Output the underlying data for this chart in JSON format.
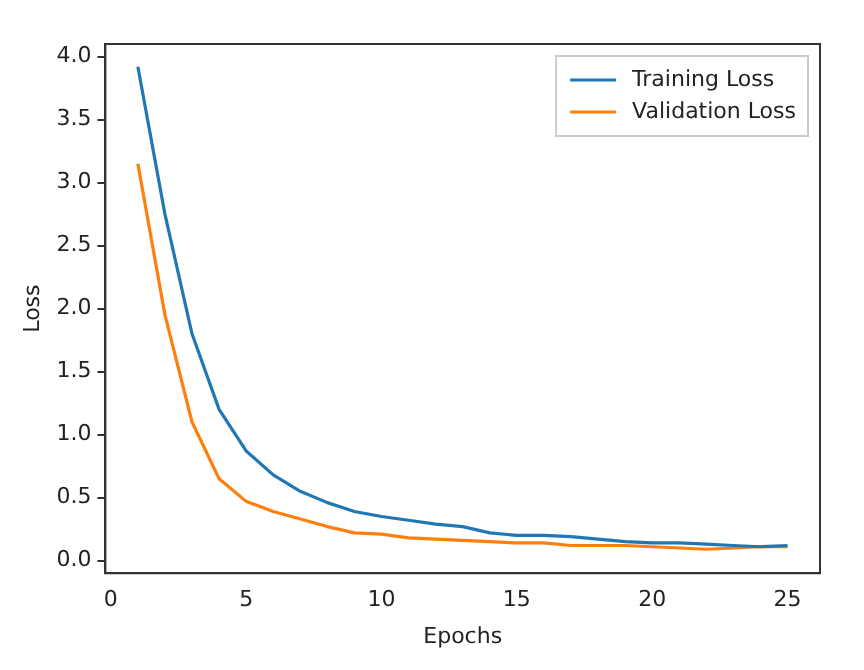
{
  "chart_data": {
    "type": "line",
    "xlabel": "Epochs",
    "ylabel": "Loss",
    "x": [
      1,
      2,
      3,
      4,
      5,
      6,
      7,
      8,
      9,
      10,
      11,
      12,
      13,
      14,
      15,
      16,
      17,
      18,
      19,
      20,
      21,
      22,
      23,
      24,
      25
    ],
    "series": [
      {
        "name": "Training Loss",
        "color": "#1f77b4",
        "values": [
          3.92,
          2.75,
          1.8,
          1.2,
          0.87,
          0.68,
          0.55,
          0.46,
          0.39,
          0.35,
          0.32,
          0.29,
          0.27,
          0.22,
          0.2,
          0.2,
          0.19,
          0.17,
          0.15,
          0.14,
          0.14,
          0.13,
          0.12,
          0.11,
          0.12
        ]
      },
      {
        "name": "Validation Loss",
        "color": "#ff7f0e",
        "values": [
          3.15,
          1.95,
          1.1,
          0.65,
          0.47,
          0.39,
          0.33,
          0.27,
          0.22,
          0.21,
          0.18,
          0.17,
          0.16,
          0.15,
          0.14,
          0.14,
          0.12,
          0.12,
          0.12,
          0.11,
          0.1,
          0.09,
          0.1,
          0.11,
          0.11
        ]
      }
    ],
    "xlim": [
      -0.2,
      26.2
    ],
    "xticks": [
      0,
      5,
      10,
      15,
      20,
      25
    ],
    "ylim": [
      -0.1,
      4.1
    ],
    "yticks": [
      {
        "value": 0,
        "label": "0.0"
      },
      0.5,
      {
        "value": 1,
        "label": "1.0"
      },
      1.5,
      {
        "value": 2,
        "label": "2.0"
      },
      2.5,
      {
        "value": 3,
        "label": "3.0"
      },
      3.5,
      {
        "value": 4,
        "label": "4.0"
      }
    ],
    "legend": "top right",
    "grid": false,
    "marker": "none",
    "line_style": "solid"
  }
}
